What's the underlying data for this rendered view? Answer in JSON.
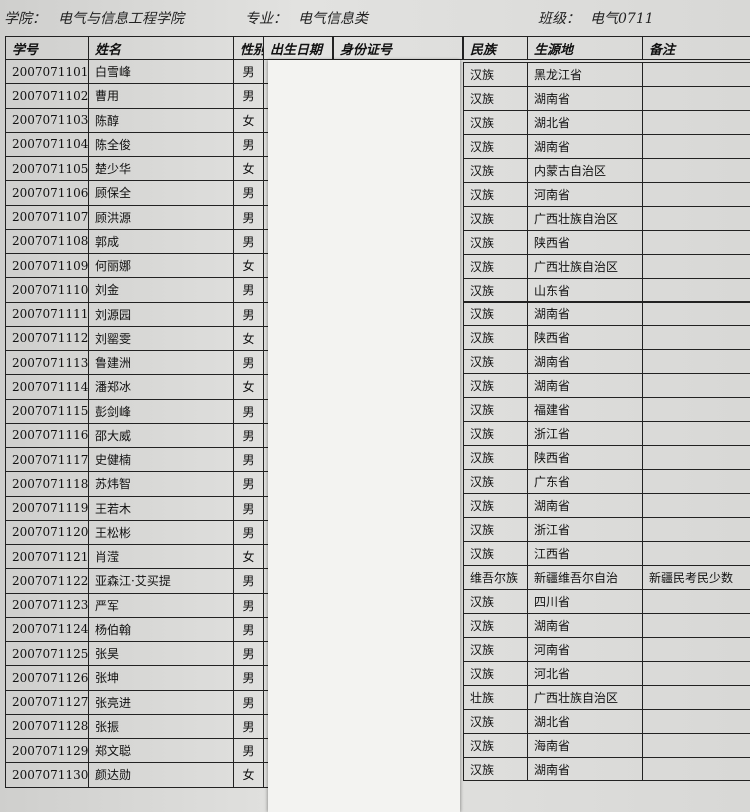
{
  "header": {
    "college_label": "学院：",
    "college": "电气与信息工程学院",
    "major_label": "专业：",
    "major": "电气信息类",
    "class_label": "班级：",
    "class": "电气0711"
  },
  "table": {
    "columns": [
      "学号",
      "姓名",
      "性别",
      "出生日期",
      "身份证号",
      "民族",
      "生源地",
      "备注"
    ],
    "rows": [
      {
        "id": "2007071101",
        "name": "白雪峰",
        "gender": "男",
        "ethnicity": "汉族",
        "origin": "黑龙江省"
      },
      {
        "id": "2007071102",
        "name": "曹用",
        "gender": "男",
        "ethnicity": "汉族",
        "origin": "湖南省"
      },
      {
        "id": "2007071103",
        "name": "陈醇",
        "gender": "女",
        "ethnicity": "汉族",
        "origin": "湖北省"
      },
      {
        "id": "2007071104",
        "name": "陈全俊",
        "gender": "男",
        "ethnicity": "汉族",
        "origin": "湖南省"
      },
      {
        "id": "2007071105",
        "name": "楚少华",
        "gender": "女",
        "ethnicity": "汉族",
        "origin": "内蒙古自治区"
      },
      {
        "id": "2007071106",
        "name": "顾保全",
        "gender": "男",
        "ethnicity": "汉族",
        "origin": "河南省"
      },
      {
        "id": "2007071107",
        "name": "顾洪源",
        "gender": "男",
        "ethnicity": "汉族",
        "origin": "广西壮族自治区"
      },
      {
        "id": "2007071108",
        "name": "郭成",
        "gender": "男",
        "ethnicity": "汉族",
        "origin": "陕西省"
      },
      {
        "id": "2007071109",
        "name": "何丽娜",
        "gender": "女",
        "ethnicity": "汉族",
        "origin": "广西壮族自治区"
      },
      {
        "id": "2007071110",
        "name": "刘金",
        "gender": "男",
        "ethnicity": "汉族",
        "origin": "山东省"
      },
      {
        "id": "2007071111",
        "name": "刘源园",
        "gender": "男",
        "ethnicity": "汉族",
        "origin": "湖南省"
      },
      {
        "id": "2007071112",
        "name": "刘罂雯",
        "gender": "女",
        "ethnicity": "汉族",
        "origin": "陕西省"
      },
      {
        "id": "2007071113",
        "name": "鲁建洲",
        "gender": "男",
        "ethnicity": "汉族",
        "origin": "湖南省"
      },
      {
        "id": "2007071114",
        "name": "潘郑冰",
        "gender": "女",
        "ethnicity": "汉族",
        "origin": "湖南省"
      },
      {
        "id": "2007071115",
        "name": "彭剑峰",
        "gender": "男",
        "ethnicity": "汉族",
        "origin": "福建省"
      },
      {
        "id": "2007071116",
        "name": "邵大威",
        "gender": "男",
        "ethnicity": "汉族",
        "origin": "浙江省"
      },
      {
        "id": "2007071117",
        "name": "史健楠",
        "gender": "男",
        "ethnicity": "汉族",
        "origin": "陕西省"
      },
      {
        "id": "2007071118",
        "name": "苏炜智",
        "gender": "男",
        "ethnicity": "汉族",
        "origin": "广东省"
      },
      {
        "id": "2007071119",
        "name": "王若木",
        "gender": "男",
        "ethnicity": "汉族",
        "origin": "湖南省"
      },
      {
        "id": "2007071120",
        "name": "王松彬",
        "gender": "男",
        "ethnicity": "汉族",
        "origin": "浙江省"
      },
      {
        "id": "2007071121",
        "name": "肖滢",
        "gender": "女",
        "ethnicity": "汉族",
        "origin": "江西省"
      },
      {
        "id": "2007071122",
        "name": "亚森江·艾买提",
        "gender": "男",
        "ethnicity": "维吾尔族",
        "origin": "新疆维吾尔自治",
        "remark": "新疆民考民少数"
      },
      {
        "id": "2007071123",
        "name": "严军",
        "gender": "男",
        "ethnicity": "汉族",
        "origin": "四川省"
      },
      {
        "id": "2007071124",
        "name": "杨伯翰",
        "gender": "男",
        "ethnicity": "汉族",
        "origin": "湖南省"
      },
      {
        "id": "2007071125",
        "name": "张昊",
        "gender": "男",
        "ethnicity": "汉族",
        "origin": "河南省"
      },
      {
        "id": "2007071126",
        "name": "张坤",
        "gender": "男",
        "ethnicity": "汉族",
        "origin": "河北省"
      },
      {
        "id": "2007071127",
        "name": "张亮进",
        "gender": "男",
        "ethnicity": "壮族",
        "origin": "广西壮族自治区"
      },
      {
        "id": "2007071128",
        "name": "张振",
        "gender": "男",
        "ethnicity": "汉族",
        "origin": "湖北省"
      },
      {
        "id": "2007071129",
        "name": "郑文聪",
        "gender": "男",
        "ethnicity": "汉族",
        "origin": "海南省"
      },
      {
        "id": "2007071130",
        "name": "颜达勋",
        "gender": "女",
        "ethnicity": "汉族",
        "origin": "湖南省"
      }
    ]
  }
}
